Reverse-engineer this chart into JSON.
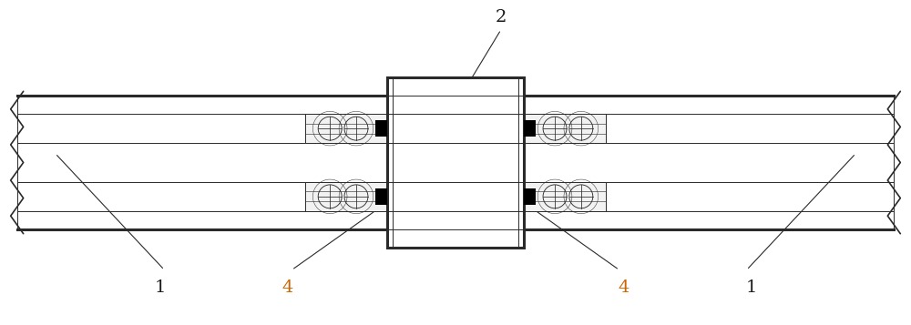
{
  "bg_color": "#ffffff",
  "line_color": "#2a2a2a",
  "fig_width": 10.0,
  "fig_height": 3.57,
  "label_2_color": "#1a1a1a",
  "label_1_color": "#1a1a1a",
  "label_4_color": "#cc6600"
}
